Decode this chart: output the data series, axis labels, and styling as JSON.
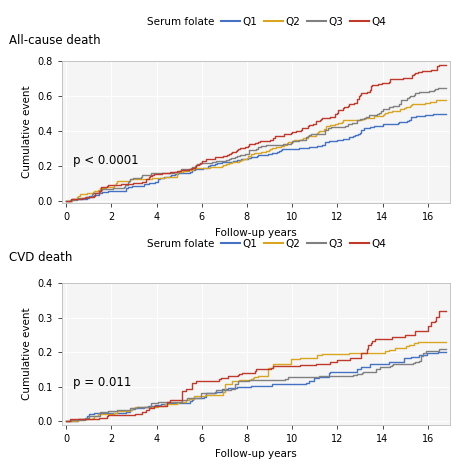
{
  "title1": "All-cause death",
  "title2": "CVD death",
  "xlabel": "Follow-up years",
  "ylabel": "Cumulative event",
  "legend_title": "Serum folate",
  "colors": {
    "Q1": "#4472C4",
    "Q2": "#DAA520",
    "Q3": "#808080",
    "Q4": "#C0392B"
  },
  "pvalue1": "p < 0.0001",
  "pvalue2": "p = 0.011",
  "xlim": [
    -0.2,
    17
  ],
  "xticks": [
    0,
    2,
    4,
    6,
    8,
    10,
    12,
    14,
    16
  ],
  "ylim1": [
    -0.01,
    0.8
  ],
  "yticks1": [
    0.0,
    0.2,
    0.4,
    0.6,
    0.8
  ],
  "ylim2": [
    -0.01,
    0.4
  ],
  "yticks2": [
    0.0,
    0.1,
    0.2,
    0.3,
    0.4
  ],
  "panel_bg": "#f5f5f5"
}
